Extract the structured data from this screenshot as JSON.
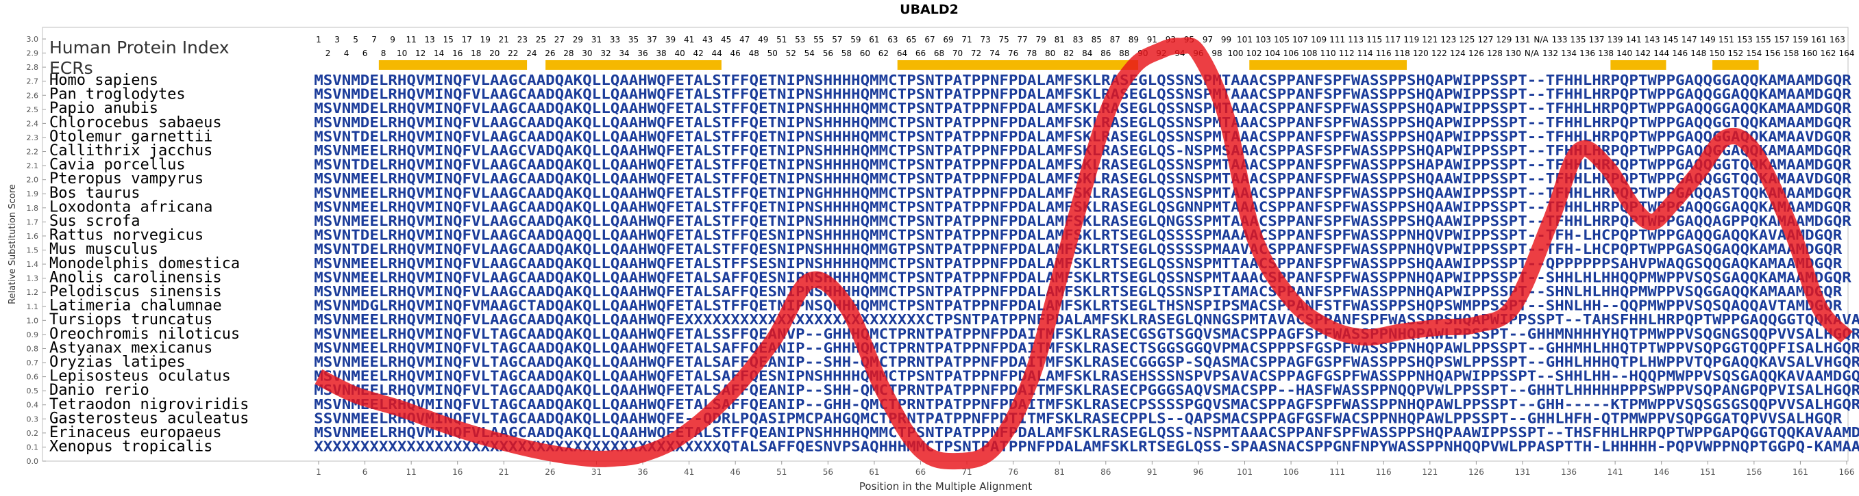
{
  "chart_data": {
    "type": "line",
    "title": "UBALD2",
    "xlabel": "Position in the Multiple Alignment",
    "ylabel": "Relative Substitution Score",
    "ylim": [
      0.0,
      3.0
    ],
    "xlim": [
      1,
      166
    ],
    "y_ticks": [
      "0.0",
      "0.1",
      "0.2",
      "0.3",
      "0.4",
      "0.5",
      "0.6",
      "0.7",
      "0.8",
      "0.9",
      "1.0",
      "1.1",
      "1.2",
      "1.3",
      "1.4",
      "1.5",
      "1.6",
      "1.7",
      "1.8",
      "1.9",
      "2.0",
      "2.1",
      "2.2",
      "2.3",
      "2.4",
      "2.5",
      "2.6",
      "2.7",
      "2.8",
      "2.9",
      "3.0"
    ],
    "x_ticks": [
      1,
      6,
      11,
      16,
      21,
      26,
      31,
      36,
      41,
      46,
      51,
      56,
      61,
      66,
      71,
      76,
      81,
      86,
      91,
      96,
      101,
      106,
      111,
      116,
      121,
      126,
      131,
      136,
      141,
      146,
      151,
      156,
      161,
      166
    ],
    "grid": false,
    "legend": [
      {
        "name": "Human Protein Index",
        "color": "#333333"
      },
      {
        "name": "ECRs",
        "color": "#f5b800"
      }
    ],
    "human_index_odd": [
      "1",
      "3",
      "5",
      "7",
      "9",
      "11",
      "13",
      "15",
      "17",
      "19",
      "21",
      "23",
      "25",
      "27",
      "29",
      "31",
      "33",
      "35",
      "37",
      "39",
      "41",
      "43",
      "45",
      "47",
      "49",
      "51",
      "53",
      "55",
      "57",
      "59",
      "61",
      "63",
      "65",
      "67",
      "69",
      "71",
      "73",
      "75",
      "77",
      "79",
      "81",
      "83",
      "85",
      "87",
      "89",
      "91",
      "93",
      "95",
      "97",
      "99",
      "101",
      "103",
      "105",
      "107",
      "109",
      "111",
      "113",
      "115",
      "117",
      "119",
      "121",
      "123",
      "125",
      "127",
      "129",
      "131",
      "N/A",
      "133",
      "135",
      "137",
      "139",
      "141",
      "143",
      "145",
      "147",
      "149",
      "151",
      "153",
      "155",
      "157",
      "159",
      "161",
      "163"
    ],
    "human_index_even": [
      "2",
      "4",
      "6",
      "8",
      "10",
      "12",
      "14",
      "16",
      "18",
      "20",
      "22",
      "24",
      "26",
      "28",
      "30",
      "32",
      "34",
      "36",
      "38",
      "40",
      "42",
      "44",
      "46",
      "48",
      "50",
      "52",
      "54",
      "56",
      "58",
      "60",
      "62",
      "64",
      "66",
      "68",
      "70",
      "72",
      "74",
      "76",
      "78",
      "80",
      "82",
      "84",
      "86",
      "88",
      "90",
      "92",
      "94",
      "96",
      "98",
      "100",
      "102",
      "104",
      "106",
      "108",
      "110",
      "112",
      "114",
      "116",
      "118",
      "120",
      "122",
      "124",
      "126",
      "128",
      "130",
      "N/A",
      "132",
      "134",
      "136",
      "138",
      "140",
      "142",
      "144",
      "146",
      "148",
      "150",
      "152",
      "154",
      "156",
      "158",
      "160",
      "162",
      "164"
    ],
    "ecr_ranges": [
      [
        8,
        23
      ],
      [
        26,
        44
      ],
      [
        64,
        89
      ],
      [
        102,
        118
      ],
      [
        141,
        146
      ],
      [
        152,
        156
      ]
    ],
    "series": [
      {
        "color": "#e8141a",
        "x": [
          1,
          5,
          10,
          15,
          20,
          25,
          30,
          33,
          36,
          40,
          45,
          50,
          54,
          58,
          62,
          66,
          70,
          74,
          78,
          82,
          86,
          89,
          92,
          94,
          96,
          99,
          102,
          106,
          110,
          114,
          118,
          122,
          126,
          130,
          134,
          137,
          140,
          143,
          145,
          147,
          150,
          153,
          156,
          160,
          163,
          166
        ],
        "y": [
          0.6,
          0.47,
          0.37,
          0.25,
          0.15,
          0.07,
          0.02,
          0.02,
          0.05,
          0.17,
          0.45,
          0.85,
          1.28,
          1.1,
          0.5,
          0.08,
          0.0,
          0.1,
          0.6,
          1.55,
          2.45,
          2.8,
          2.92,
          2.95,
          2.9,
          2.45,
          1.6,
          1.15,
          0.95,
          0.88,
          0.92,
          0.95,
          0.97,
          1.1,
          1.7,
          2.2,
          2.1,
          1.8,
          1.7,
          1.82,
          2.05,
          2.3,
          2.2,
          1.65,
          1.1,
          0.88
        ]
      }
    ],
    "species": [
      "Homo sapiens",
      "Pan troglodytes",
      "Papio anubis",
      "Chlorocebus sabaeus",
      "Otolemur garnettii",
      "Callithrix jacchus",
      "Cavia porcellus",
      "Pteropus vampyrus",
      "Bos taurus",
      "Loxodonta africana",
      "Sus scrofa",
      "Rattus norvegicus",
      "Mus musculus",
      "Monodelphis domestica",
      "Anolis carolinensis",
      "Pelodiscus sinensis",
      "Latimeria chalumnae",
      "Tursiops truncatus",
      "Oreochromis niloticus",
      "Astyanax mexicanus",
      "Oryzias latipes",
      "Lepisosteus oculatus",
      "Danio rerio",
      "Tetraodon nigroviridis",
      "Gasterosteus aculeatus",
      "Erinaceus europaeus",
      "Xenopus tropicalis"
    ],
    "sequences": [
      "MSVNMDELRHQVMINQFVLAAGCAADQAKQLLQAAHWQFETALSTFFQETNIPNSHHHHQMMCTPSNTPATPPNFPDALAMFSKLRASEGLQSSNSPMTAAACSPPANFSPFWASSPPSHQAPWIPPSSPT--TFHHLHRPQPTWPPGAQQGGAQQKAMAAMDGQR",
      "MSVNMDELRHQVMINQFVLAAGCAADQAKQLLQAAHWQFETALSTFFQETNIPNSHHHHQMMCTPSNTPATPPNFPDALAMFSKLRASEGLQSSNSPMTAAACSPPANFSPFWASSPPSHQAPWIPPSSPT--TFHHLHRPQPTWPPGAQQGGAQQKAMAAMDGQR",
      "MSVNMDELRHQVMINQFVLAAGCAADQAKQLLQAAHWQFETALSTFFQETNIPNSHHHHQMMCTPSNTPATPPNFPDALAMFSKLRASEGLQSSNSPMTAAACSPPANFSPFWASSPPSHQAPWIPPSSPT--TFHHLHRPQPTWPPGAQQGGAQQKAMAAMDGQR",
      "MSVNMDELRHQVMINQFVLAAGCAADQAKQLLQAAHWQFETALSTFFQETNIPNSHHHHQMMCTPSNTPATPPNFPDALAMFSKLRASEGLQSSNSPMTAAACSPPANFSPFWASSPPSHQAPWIPPSSPT--TFHHLHRPQPTWPPGAQQGGTQQKAMAAMDGQR",
      "MSVNTDELRHQVMINQFVLAAGCAADQAKQLLQAAHWQFETALSTFFQETNIPNSHHHHQMMCTPSNTPATPPNFPDALAMFSKLRASEGLQSSNSPMTAAACSPPANFSPFWASSPPSHQAPWIPPSSPT--TFHHLHRPQPTWPPGAQQGGAQQKAMAAVDGQR",
      "MSVNMEELRHQVMINQFVLAAGCVADQAKQLLQAAHWQFETALSTFFQETNIPNSHHHHQMMCTPSNTPATPPNFPDALAMFSKLRASEGLQS-NSPMSAAACSPPASFSPFWASSPPSHQAPWIPPSSPT--TFHHLHRPQPTWPPGAQQGGAQQKAMAAMDGQR",
      "MSVNTDELRHQVMINQFVLAAGCAADQAKQLLQAAHWQFETALSTFFQETNIPNSHHHHQMMCTPSNTPATPPNFPDALAMFSKLRASEGLQSSNSPMTAAACSPPANFSPFWASSPPSHAPAWIPPSSPT--TFHHLHRPQPTWPPGAQQGGTQQKAMAAMDGQR",
      "MSVNMEELRHQVMINQFVLAAGCAADQAKQLLQAAHWQFETALSTFFQETNIPNSHHHHQMMCTPSNTPATPPNFPDALAMFSKLRASEGLQSSNSPMTAAACSPPANFSPFWASSPPSHQAAWIPPSSPT--TFHHLHRPQPTWPPGAQQGGTQQKAMAAVDGQR",
      "MSVNMEELRHQVMINQFVLAAGCAADQAKQLLQAAHWQFETALSTFFQETNIPNGHHHHQMMCTPSNTPATPPNFPDALAMFSKLRASEGLQSSNSPMTAAACSPPANFSPFWASSPPSHQAAWIPPSSPT--TFHHLHRPQPTWPPGAQQASTQQKAMAAMDGQR",
      "MSVNMEELRHQVMINQFVLAAGCAADQAKQLLQAAHWQFETALSTFFQETNIPNSHHHHQMMCTPSNTPATPPNFPDALAMFSKLRASEGLQSGNNPMTAAACSPPANFSPFWASSPPSHQAAWIPPSSPT--TFHHLHRPQPTWPPGAQQGGAQQKAMAAMDGQR",
      "MSVNMEELRHQVMINQFVLAAGCAADQAKQLLQAAHWQFETALSTFFQETNIPNSHHHHQMMCTPSNTPATPPNFPDALAMFSKLRASEGLQNGSSPMTAAACSPPANFSPFWASSPPSHQAAWIPPSSPT--TFHHLHRPQPTWPPGAQQAGPPQKAMAAMDGQR",
      "MSVNTDELRHQVMINQFVLAAGCAADQAQQLLQAAHWQFETALSTFFQESNIPNSHHHHQMMCTPSNTPATPPNFPDALAMFSKLRTSEGLQSSSSPMAAAACSPPANFSPFWASSPPNHQVPWIPPSSPT--TFH-LHCPQPTWPPGAQQGAQQKAVAAMDGQR",
      "MSVNTDELRHQVMINQFVLAAGCAADQAKQLLQAAHWQFETALSTFFQESNIPNSHHHHQMMGTPSNTPATPPNFPDALAMFSKLRTSEGLQSSSSPMAAVACSPPANFSPFWASSPPNHQVPWIPPSSPT--TFH-LHCPQPTWPPGASQGAQQKAMAAMDGQR",
      "MSVNMEELRHQVMINQFVLAAGCAADQAKQLLQAAHWQFETALSTFFSESNIPNSHHHHQMMCTPSNTPATPPNFPDALAMFSKLRTSEGLQSSNSPMTTAACSPPANFSPFWASSPPSHQAAWIPPSSPT--QPPPPPPSAHVPWAQGSQQGAQKAMAAMDGQR",
      "MSVNMEELRHQVMINQFVLAAGCAADQAKQLLQAAHWQFETALSAFFQESNIPNSHHHHQMMCTPSNTPATPPNFPDALAMFSKLRTSEGLQSSNSPMTAAACSPPANFSPFWASSPPNHQAPWIPPSSPT--SHHLHLHHQQPMWPPVSQSGAQQKAMAAMDGQR",
      "MSVNMEELRHQVMINQFVLAAGCAADQAKQLLQAAHWQFETALSAFFQESNIPNSHHHHQMMCTPSNTPATPPNFPDALAMFSKLRTSEGLQSSNSPITAMACSPPANFSPFWASSPPNHQAPWIPPSSPT--SHNLHLHHQPMWPPVSQGGAQQKAMAAMDGQR",
      "MSVNMDGLRHQVMINQFVMAAGCTADQAKQLLQAAHWQFETALSTFFQETNIPNSQHHHQMMCTPSNTPATPPNFPDALAMFSKLRTSEGLTHSNSPIPSMACSPPANFSTFWASSPPSHQPSWMPPSSPT--SHNLHH--QQPMWPPVSQSQAQQAVTAMDGQR",
      "MSVNMEELRHQVMINQFVLAAGCAADQAKQLLQAAHWQFEXXXXXXXXXXXXXXXXXXXXXXXXXXCTPSNTPATPPNFPDALAMFSKLRASEGLQNNGSPMTAVACSPPANFSPFWASSPPSHQAPWIPPSSPT--TAHSFHHLHRPQPTWPPGAQQGGTQQKAVAAMDGQR",
      "MSVNMEELRHQVMINQFVLTAGCAADQAKQLLQAAHWQFETALSSFFQEANVP--GHHHQMCTPRNTPATPPNFPDAITMFSKLRASECGSGTSGQVSMACSPPAGFSPFWASSPPNHQPAWLPPSSPT--GHHMNHHHYHQTPMWPPVSQGNGSQQPVVSALHGQR",
      "MSVNMEELRHQVMINQFVLTAGCAADQAKQLLQAAHWQFETALSAFFQEANIP--GHHHQMCTPRNTPATPPNFPDAITMFSKLRASECTSGGSGGQVPMACSPPPSFGSPFWASSPPNHQPAWLPPSSPT--GHHMHLHHQTPTWPPVSQPGGTQQPFISALHGQR",
      "MSVNMEELRHQVMINQFVLTAGCAADQAKQLLQAAHWQFETALSAFFQEANIP--SHH-QMCTPRNTPATPPNFPDAITMFSKLRASECGGGSP-SQASMACSPPAGFGSPFWASSPPSHQPSWLPPSSPT--GHHLHHHQTPLHWPPVTQPGAQQKAVSALVHGQR",
      "MSVNMEELRHQVMINQFVLTAGCAADQAKQLLQAAHWQFETALSAFFQESNIPNSHHHHQMMCTPSNTPATPPNFPDALAMFSKLRASEHSSSNSPVPSAVACSPPAGFGSPFWASSPPNHQAPWIPPSSPT--SHHLHH--HQQPMWPPVSQSGAQQKAVAAMDGQR",
      "MSVNMEELRHQVMINQFVLTAGCAADQAKQLLQAAHWQFETALSAFFQEANIP--SHH-QMCTPRNTPATPPNFPDAITMFSKLRASECPGGGSAQVSMACSPP--HASFWASSPPNQQPVWLPPSSPT--GHHTLHHHHHPPPSWPPVSQPANGPQPVISALHGQR",
      "MSVNMEELRHQVMINQFVLTAGCAADQAKQLLQAAHWQFETALSAFFQEANIP--GHH-QMCTPRNTPATPPNFPDAITMFSKLRASECPSSSSPGQVSMACSPPAGFSPFWASSPPNHQPAWLPPSSPT--GHH-----KTPMWPPVSQSGSGSQQPVVSALHGQR",
      "SSVNMEELRHQVMINQFVLTAGCAADQAKQLLQAAHWQFE--QDRLPQASIPMCPAHGQMCTPRNTPATPPNFPDTITMFSKLRASECPPLS--QAPSMACSPPAGFGSFWACSPPNHQPAWLPPSSPT--GHHLHFH-QTPMWPPVSQPGGATQPVVSALHGQR",
      "MSVNMEELRHQVMINQFVLAAGCAADQAKQLLQAAHWQFETALSTFFQEANIPNSHHHHQMMCTPSNTPATPPNFPDALAMFSKLRASEGLQSS-NSPMTAAACSPPANFSPFWASSPPSHQPAAWIPPSSPT--THSFHHLHRPQPTWPPGAPQGGTQQKAVAAMDGQR",
      "XXXXXXXXXXXXXXXXXXXXXXXXXXXXXXXXXXXXXXXXXXXXQTALSAFFQESNVPSAQHHHMMCTPSNTPATPPNFPDALAMFSKLRTSEGLQSS-SPAASNACSPPGNFNPYWASSPPNHQQPVWLPPASPTTH-LHHHHH-PQPVWPPNQPTGGPQ-KAMAAMDGQR"
    ]
  }
}
